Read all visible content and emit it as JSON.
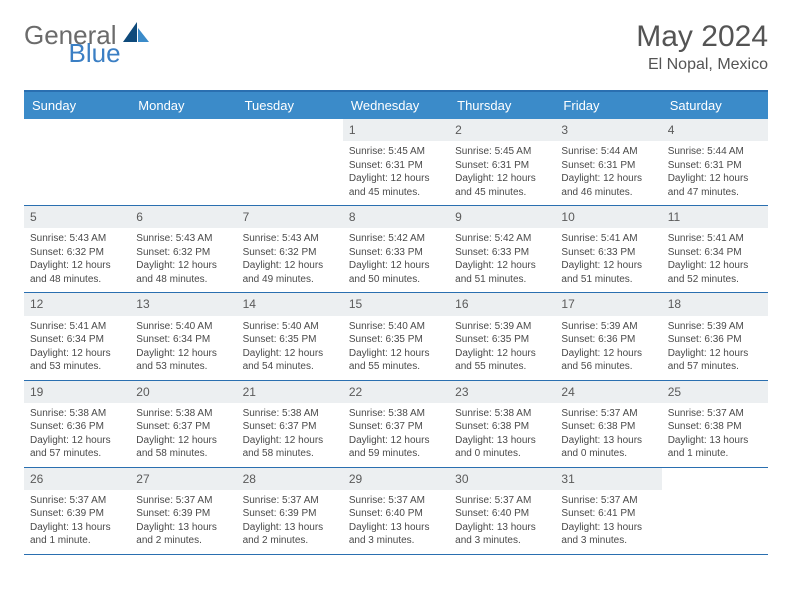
{
  "logo": {
    "general": "General",
    "blue": "Blue"
  },
  "title": "May 2024",
  "location": "El Nopal, Mexico",
  "weekdays": [
    "Sunday",
    "Monday",
    "Tuesday",
    "Wednesday",
    "Thursday",
    "Friday",
    "Saturday"
  ],
  "colors": {
    "header_band": "#3b8bc9",
    "top_border": "#2a6fb0",
    "daynum_bg": "#eceff1",
    "logo_gray": "#6b6b6b",
    "logo_blue": "#3b7fc4",
    "sail_dark": "#0e4a7b",
    "sail_light": "#3b8bc9",
    "text_main": "#4a4a4a"
  },
  "typography": {
    "month_title_pt": 30,
    "location_pt": 16,
    "weekday_pt": 13,
    "daynum_pt": 12,
    "body_pt": 10
  },
  "weeks": [
    [
      {
        "day": "",
        "sunrise": "",
        "sunset": "",
        "daylight": ""
      },
      {
        "day": "",
        "sunrise": "",
        "sunset": "",
        "daylight": ""
      },
      {
        "day": "",
        "sunrise": "",
        "sunset": "",
        "daylight": ""
      },
      {
        "day": "1",
        "sunrise": "Sunrise: 5:45 AM",
        "sunset": "Sunset: 6:31 PM",
        "daylight": "Daylight: 12 hours and 45 minutes."
      },
      {
        "day": "2",
        "sunrise": "Sunrise: 5:45 AM",
        "sunset": "Sunset: 6:31 PM",
        "daylight": "Daylight: 12 hours and 45 minutes."
      },
      {
        "day": "3",
        "sunrise": "Sunrise: 5:44 AM",
        "sunset": "Sunset: 6:31 PM",
        "daylight": "Daylight: 12 hours and 46 minutes."
      },
      {
        "day": "4",
        "sunrise": "Sunrise: 5:44 AM",
        "sunset": "Sunset: 6:31 PM",
        "daylight": "Daylight: 12 hours and 47 minutes."
      }
    ],
    [
      {
        "day": "5",
        "sunrise": "Sunrise: 5:43 AM",
        "sunset": "Sunset: 6:32 PM",
        "daylight": "Daylight: 12 hours and 48 minutes."
      },
      {
        "day": "6",
        "sunrise": "Sunrise: 5:43 AM",
        "sunset": "Sunset: 6:32 PM",
        "daylight": "Daylight: 12 hours and 48 minutes."
      },
      {
        "day": "7",
        "sunrise": "Sunrise: 5:43 AM",
        "sunset": "Sunset: 6:32 PM",
        "daylight": "Daylight: 12 hours and 49 minutes."
      },
      {
        "day": "8",
        "sunrise": "Sunrise: 5:42 AM",
        "sunset": "Sunset: 6:33 PM",
        "daylight": "Daylight: 12 hours and 50 minutes."
      },
      {
        "day": "9",
        "sunrise": "Sunrise: 5:42 AM",
        "sunset": "Sunset: 6:33 PM",
        "daylight": "Daylight: 12 hours and 51 minutes."
      },
      {
        "day": "10",
        "sunrise": "Sunrise: 5:41 AM",
        "sunset": "Sunset: 6:33 PM",
        "daylight": "Daylight: 12 hours and 51 minutes."
      },
      {
        "day": "11",
        "sunrise": "Sunrise: 5:41 AM",
        "sunset": "Sunset: 6:34 PM",
        "daylight": "Daylight: 12 hours and 52 minutes."
      }
    ],
    [
      {
        "day": "12",
        "sunrise": "Sunrise: 5:41 AM",
        "sunset": "Sunset: 6:34 PM",
        "daylight": "Daylight: 12 hours and 53 minutes."
      },
      {
        "day": "13",
        "sunrise": "Sunrise: 5:40 AM",
        "sunset": "Sunset: 6:34 PM",
        "daylight": "Daylight: 12 hours and 53 minutes."
      },
      {
        "day": "14",
        "sunrise": "Sunrise: 5:40 AM",
        "sunset": "Sunset: 6:35 PM",
        "daylight": "Daylight: 12 hours and 54 minutes."
      },
      {
        "day": "15",
        "sunrise": "Sunrise: 5:40 AM",
        "sunset": "Sunset: 6:35 PM",
        "daylight": "Daylight: 12 hours and 55 minutes."
      },
      {
        "day": "16",
        "sunrise": "Sunrise: 5:39 AM",
        "sunset": "Sunset: 6:35 PM",
        "daylight": "Daylight: 12 hours and 55 minutes."
      },
      {
        "day": "17",
        "sunrise": "Sunrise: 5:39 AM",
        "sunset": "Sunset: 6:36 PM",
        "daylight": "Daylight: 12 hours and 56 minutes."
      },
      {
        "day": "18",
        "sunrise": "Sunrise: 5:39 AM",
        "sunset": "Sunset: 6:36 PM",
        "daylight": "Daylight: 12 hours and 57 minutes."
      }
    ],
    [
      {
        "day": "19",
        "sunrise": "Sunrise: 5:38 AM",
        "sunset": "Sunset: 6:36 PM",
        "daylight": "Daylight: 12 hours and 57 minutes."
      },
      {
        "day": "20",
        "sunrise": "Sunrise: 5:38 AM",
        "sunset": "Sunset: 6:37 PM",
        "daylight": "Daylight: 12 hours and 58 minutes."
      },
      {
        "day": "21",
        "sunrise": "Sunrise: 5:38 AM",
        "sunset": "Sunset: 6:37 PM",
        "daylight": "Daylight: 12 hours and 58 minutes."
      },
      {
        "day": "22",
        "sunrise": "Sunrise: 5:38 AM",
        "sunset": "Sunset: 6:37 PM",
        "daylight": "Daylight: 12 hours and 59 minutes."
      },
      {
        "day": "23",
        "sunrise": "Sunrise: 5:38 AM",
        "sunset": "Sunset: 6:38 PM",
        "daylight": "Daylight: 13 hours and 0 minutes."
      },
      {
        "day": "24",
        "sunrise": "Sunrise: 5:37 AM",
        "sunset": "Sunset: 6:38 PM",
        "daylight": "Daylight: 13 hours and 0 minutes."
      },
      {
        "day": "25",
        "sunrise": "Sunrise: 5:37 AM",
        "sunset": "Sunset: 6:38 PM",
        "daylight": "Daylight: 13 hours and 1 minute."
      }
    ],
    [
      {
        "day": "26",
        "sunrise": "Sunrise: 5:37 AM",
        "sunset": "Sunset: 6:39 PM",
        "daylight": "Daylight: 13 hours and 1 minute."
      },
      {
        "day": "27",
        "sunrise": "Sunrise: 5:37 AM",
        "sunset": "Sunset: 6:39 PM",
        "daylight": "Daylight: 13 hours and 2 minutes."
      },
      {
        "day": "28",
        "sunrise": "Sunrise: 5:37 AM",
        "sunset": "Sunset: 6:39 PM",
        "daylight": "Daylight: 13 hours and 2 minutes."
      },
      {
        "day": "29",
        "sunrise": "Sunrise: 5:37 AM",
        "sunset": "Sunset: 6:40 PM",
        "daylight": "Daylight: 13 hours and 3 minutes."
      },
      {
        "day": "30",
        "sunrise": "Sunrise: 5:37 AM",
        "sunset": "Sunset: 6:40 PM",
        "daylight": "Daylight: 13 hours and 3 minutes."
      },
      {
        "day": "31",
        "sunrise": "Sunrise: 5:37 AM",
        "sunset": "Sunset: 6:41 PM",
        "daylight": "Daylight: 13 hours and 3 minutes."
      },
      {
        "day": "",
        "sunrise": "",
        "sunset": "",
        "daylight": ""
      }
    ]
  ]
}
